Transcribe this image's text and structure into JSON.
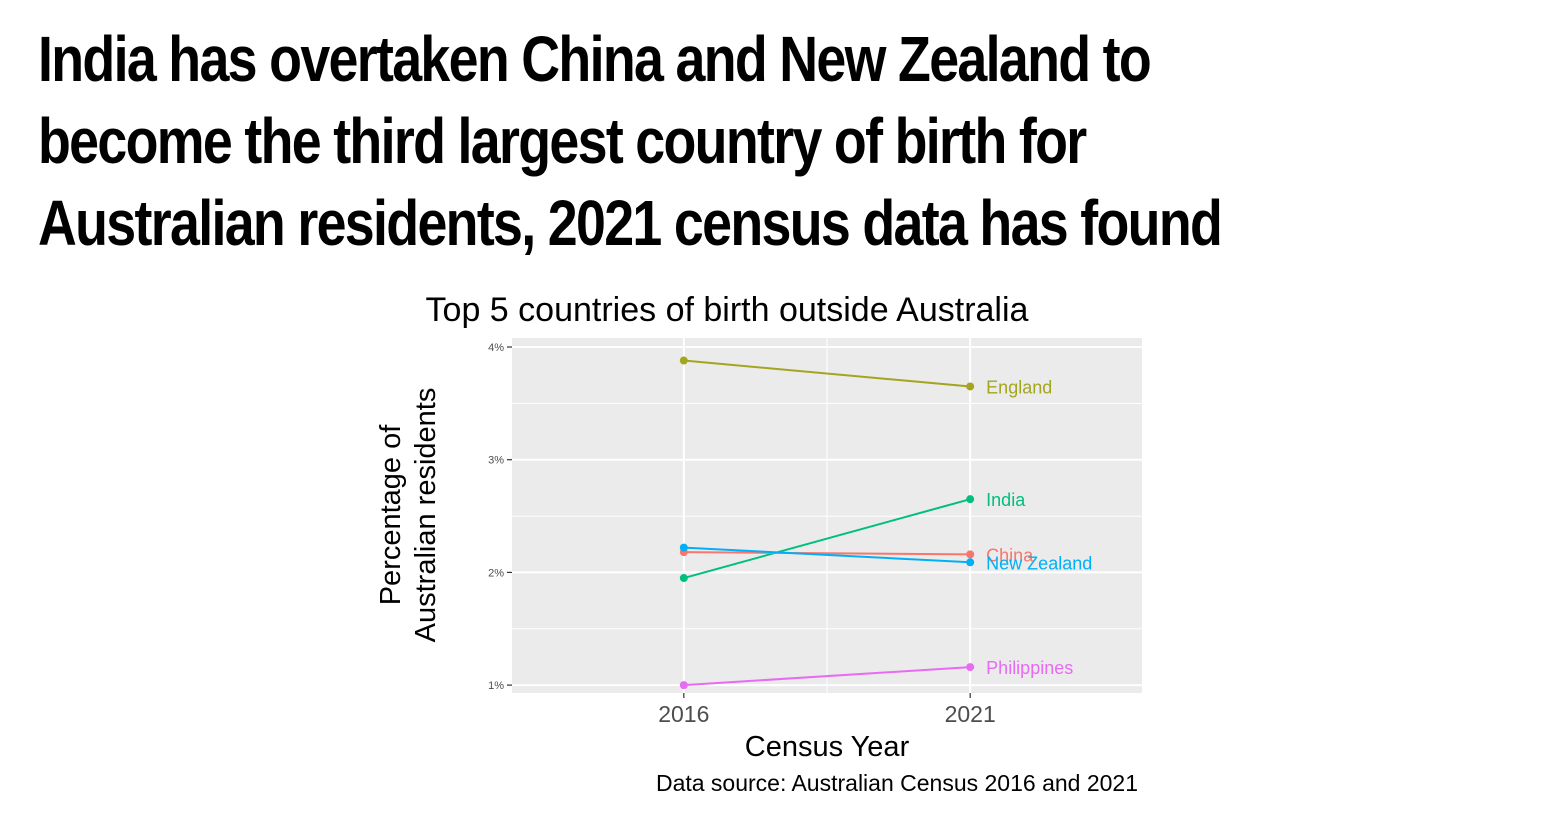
{
  "headline": "India has overtaken China and New Zealand to become the third largest country of birth for Australian residents, 2021 census data has found",
  "chart_data": {
    "type": "line",
    "title": "Top 5 countries of birth outside Australia",
    "xlabel": "Census Year",
    "ylabel_lines": [
      "Percentage of",
      "Australian residents"
    ],
    "caption": "Data source: Australian Census 2016 and 2021",
    "x": [
      2016,
      2021
    ],
    "x_tick_labels": [
      "2016",
      "2021"
    ],
    "xlim": [
      2013,
      2024
    ],
    "ylim": [
      0.93,
      4.08
    ],
    "y_ticks": [
      1,
      2,
      3,
      4
    ],
    "y_tick_labels": [
      "1%",
      "2%",
      "3%",
      "4%"
    ],
    "grid": true,
    "legend": "direct labels at line ends",
    "series": [
      {
        "name": "England",
        "values": [
          3.88,
          3.65
        ],
        "color": "#a3a520"
      },
      {
        "name": "India",
        "values": [
          1.95,
          2.65
        ],
        "color": "#00bf7d"
      },
      {
        "name": "China",
        "values": [
          2.18,
          2.16
        ],
        "color": "#f8766d"
      },
      {
        "name": "New Zealand",
        "values": [
          2.22,
          2.09
        ],
        "color": "#00b0f6"
      },
      {
        "name": "Philippines",
        "values": [
          1.0,
          1.16
        ],
        "color": "#e76bf3"
      }
    ]
  }
}
